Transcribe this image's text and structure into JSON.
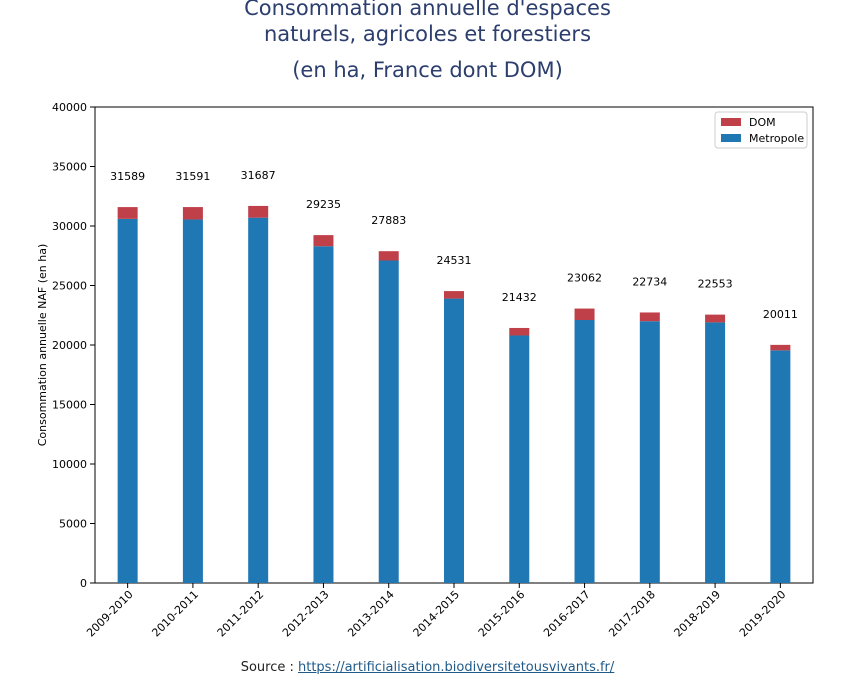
{
  "chart_data": {
    "type": "bar",
    "stacked": true,
    "title_lines": [
      "Consommation annuelle d'espaces",
      "naturels, agricoles et forestiers",
      "(en ha, France dont DOM)"
    ],
    "ylabel": "Consommation annuelle NAF (en ha)",
    "xlabel": "",
    "ylim": [
      0,
      40000
    ],
    "yticks": [
      0,
      5000,
      10000,
      15000,
      20000,
      25000,
      30000,
      35000,
      40000
    ],
    "grid": false,
    "legend_position": "top-right",
    "categories": [
      "2009-2010",
      "2010-2011",
      "2011-2012",
      "2012-2013",
      "2013-2014",
      "2014-2015",
      "2015-2016",
      "2016-2017",
      "2017-2018",
      "2018-2019",
      "2019-2020"
    ],
    "series": [
      {
        "name": "Metropole",
        "color": "#1f77b4",
        "values": [
          30600,
          30550,
          30700,
          28300,
          27100,
          23900,
          20800,
          22100,
          22000,
          21900,
          19550
        ]
      },
      {
        "name": "DOM",
        "color": "#c0404a",
        "values": [
          989,
          1041,
          987,
          935,
          783,
          631,
          632,
          962,
          734,
          653,
          461
        ]
      }
    ],
    "totals": [
      31589,
      31591,
      31687,
      29235,
      27883,
      24531,
      21432,
      23062,
      22734,
      22553,
      20011
    ],
    "legend_order": [
      "DOM",
      "Metropole"
    ]
  },
  "source": {
    "prefix": "Source : ",
    "link": "https://artificialisation.biodiversitetousvivants.fr/"
  }
}
